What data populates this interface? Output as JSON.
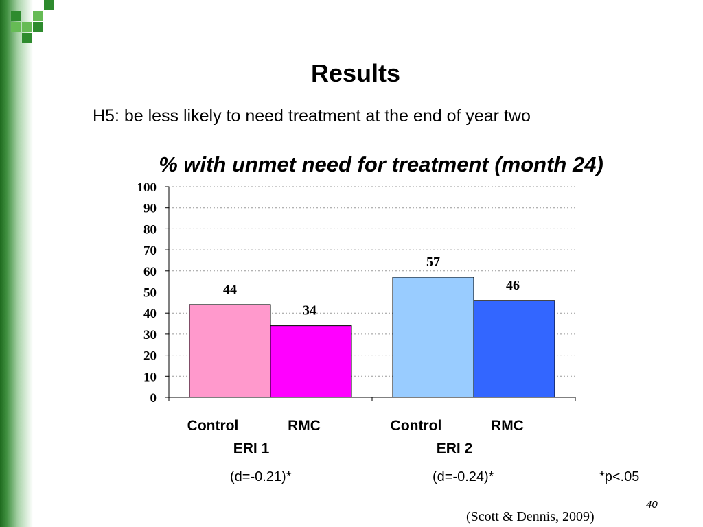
{
  "slide": {
    "title": "Results",
    "subtitle": "H5: be less likely to need treatment at the end of year two",
    "notes": [
      "(d=-0.21)*",
      "(d=-0.24)*",
      "*p<.05"
    ],
    "slide_number": "40",
    "citation": "(Scott & Dennis, 2009)"
  },
  "colors": {
    "eri1_control": "#ff99cc",
    "eri1_rmc": "#ff00ff",
    "eri2_control": "#99ccff",
    "eri2_rmc": "#3366ff",
    "accent_green": "#2e8b2e"
  },
  "chart_data": {
    "type": "bar",
    "title": "% with unmet need for treatment (month 24)",
    "groups": [
      {
        "name": "ERI 1",
        "categories": [
          "Control",
          "RMC"
        ],
        "values": [
          44,
          34
        ]
      },
      {
        "name": "ERI 2",
        "categories": [
          "Control",
          "RMC"
        ],
        "values": [
          57,
          46
        ]
      }
    ],
    "ylim": [
      0,
      100
    ],
    "yticks": [
      0,
      10,
      20,
      30,
      40,
      50,
      60,
      70,
      80,
      90,
      100
    ],
    "grid": true,
    "legend": "none"
  }
}
